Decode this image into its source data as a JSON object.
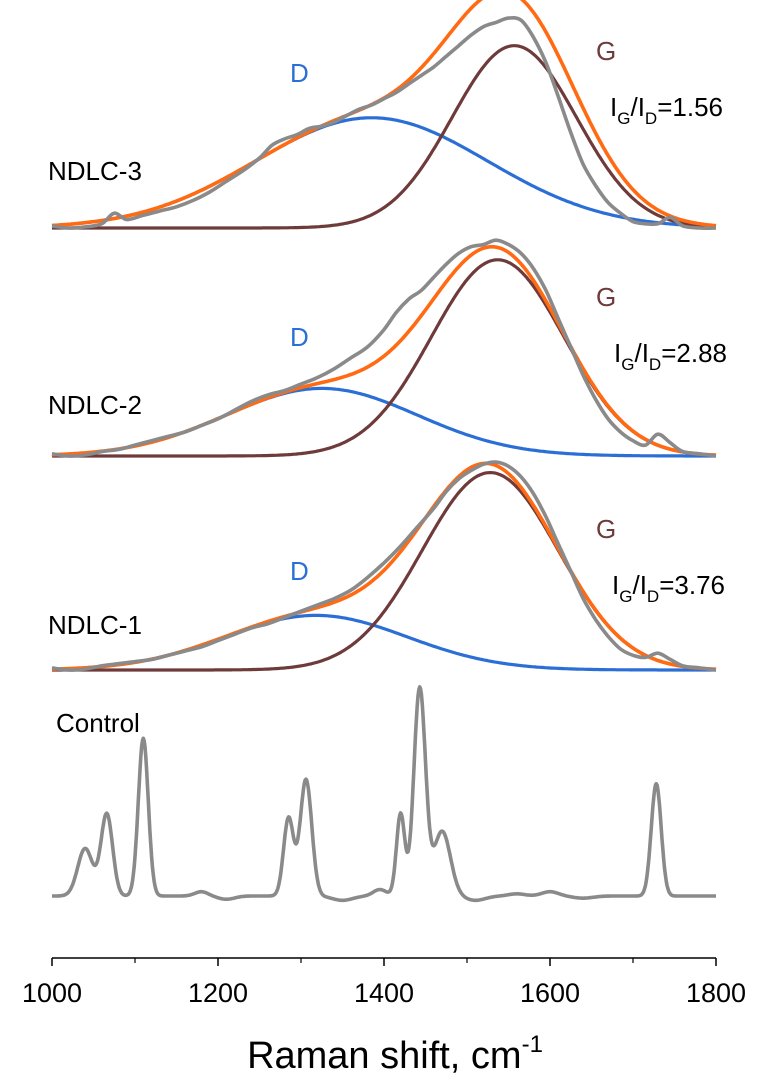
{
  "chart_data": {
    "type": "line",
    "xlabel": "Raman shift, cm",
    "xlabel_sup": "-1",
    "xlim": [
      1000,
      1800
    ],
    "xticks": [
      1000,
      1200,
      1400,
      1600,
      1800
    ],
    "ylabel": "",
    "y_ticks_shown": false,
    "grid": false,
    "colors": {
      "measured": "#8a8a8a",
      "fit": "#ff6a12",
      "d_band": "#2b6fd6",
      "g_band": "#6e3a3a",
      "axis": "#000000"
    },
    "band_labels": {
      "d": "D",
      "g": "G"
    },
    "panels": [
      {
        "name": "NDLC-3",
        "ratio_text": {
          "i1": "I",
          "sub1": "G",
          "slash": "/I",
          "sub2": "D",
          "value": "=1.56"
        },
        "d_band": {
          "center": 1385,
          "amplitude": 0.52,
          "width": 140
        },
        "g_band": {
          "center": 1557,
          "amplitude": 0.86,
          "width": 75
        },
        "measured_points": [
          [
            1000,
            0.01
          ],
          [
            1020,
            0.0
          ],
          [
            1040,
            0.005
          ],
          [
            1060,
            0.02
          ],
          [
            1075,
            0.07
          ],
          [
            1090,
            0.04
          ],
          [
            1110,
            0.06
          ],
          [
            1130,
            0.08
          ],
          [
            1150,
            0.1
          ],
          [
            1170,
            0.13
          ],
          [
            1190,
            0.17
          ],
          [
            1210,
            0.22
          ],
          [
            1230,
            0.27
          ],
          [
            1250,
            0.33
          ],
          [
            1265,
            0.39
          ],
          [
            1280,
            0.42
          ],
          [
            1295,
            0.44
          ],
          [
            1310,
            0.47
          ],
          [
            1325,
            0.48
          ],
          [
            1340,
            0.5
          ],
          [
            1355,
            0.53
          ],
          [
            1370,
            0.56
          ],
          [
            1385,
            0.58
          ],
          [
            1400,
            0.61
          ],
          [
            1415,
            0.64
          ],
          [
            1430,
            0.68
          ],
          [
            1445,
            0.72
          ],
          [
            1460,
            0.76
          ],
          [
            1475,
            0.81
          ],
          [
            1490,
            0.86
          ],
          [
            1505,
            0.91
          ],
          [
            1520,
            0.95
          ],
          [
            1535,
            0.97
          ],
          [
            1550,
            0.99
          ],
          [
            1565,
            0.98
          ],
          [
            1580,
            0.9
          ],
          [
            1595,
            0.78
          ],
          [
            1610,
            0.62
          ],
          [
            1625,
            0.45
          ],
          [
            1640,
            0.3
          ],
          [
            1655,
            0.2
          ],
          [
            1670,
            0.12
          ],
          [
            1685,
            0.07
          ],
          [
            1700,
            0.03
          ],
          [
            1715,
            0.02
          ],
          [
            1730,
            0.02
          ],
          [
            1745,
            0.05
          ],
          [
            1760,
            0.01
          ],
          [
            1780,
            0.0
          ],
          [
            1800,
            0.0
          ]
        ]
      },
      {
        "name": "NDLC-2",
        "ratio_text": {
          "i1": "I",
          "sub1": "G",
          "slash": "/I",
          "sub2": "D",
          "value": "=2.88"
        },
        "d_band": {
          "center": 1325,
          "amplitude": 0.31,
          "width": 115
        },
        "g_band": {
          "center": 1537,
          "amplitude": 0.9,
          "width": 80
        },
        "measured_points": [
          [
            1000,
            0.01
          ],
          [
            1020,
            0.0
          ],
          [
            1040,
            0.005
          ],
          [
            1060,
            0.02
          ],
          [
            1080,
            0.03
          ],
          [
            1100,
            0.05
          ],
          [
            1120,
            0.07
          ],
          [
            1140,
            0.09
          ],
          [
            1160,
            0.11
          ],
          [
            1180,
            0.14
          ],
          [
            1200,
            0.17
          ],
          [
            1220,
            0.21
          ],
          [
            1240,
            0.25
          ],
          [
            1260,
            0.28
          ],
          [
            1280,
            0.3
          ],
          [
            1300,
            0.33
          ],
          [
            1320,
            0.36
          ],
          [
            1340,
            0.4
          ],
          [
            1360,
            0.45
          ],
          [
            1380,
            0.5
          ],
          [
            1400,
            0.58
          ],
          [
            1415,
            0.66
          ],
          [
            1430,
            0.72
          ],
          [
            1445,
            0.76
          ],
          [
            1460,
            0.82
          ],
          [
            1475,
            0.88
          ],
          [
            1490,
            0.93
          ],
          [
            1505,
            0.96
          ],
          [
            1520,
            0.97
          ],
          [
            1535,
            0.99
          ],
          [
            1550,
            0.97
          ],
          [
            1565,
            0.93
          ],
          [
            1580,
            0.86
          ],
          [
            1595,
            0.76
          ],
          [
            1610,
            0.63
          ],
          [
            1625,
            0.5
          ],
          [
            1640,
            0.37
          ],
          [
            1655,
            0.26
          ],
          [
            1670,
            0.17
          ],
          [
            1685,
            0.11
          ],
          [
            1700,
            0.07
          ],
          [
            1715,
            0.05
          ],
          [
            1730,
            0.1
          ],
          [
            1745,
            0.06
          ],
          [
            1760,
            0.02
          ],
          [
            1780,
            0.01
          ],
          [
            1800,
            0.0
          ]
        ]
      },
      {
        "name": "NDLC-1",
        "ratio_text": {
          "i1": "I",
          "sub1": "G",
          "slash": "/I",
          "sub2": "D",
          "value": "=3.76"
        },
        "d_band": {
          "center": 1318,
          "amplitude": 0.26,
          "width": 110
        },
        "g_band": {
          "center": 1528,
          "amplitude": 0.94,
          "width": 82
        },
        "measured_points": [
          [
            1000,
            0.01
          ],
          [
            1020,
            0.0
          ],
          [
            1040,
            0.005
          ],
          [
            1060,
            0.02
          ],
          [
            1080,
            0.03
          ],
          [
            1100,
            0.04
          ],
          [
            1120,
            0.05
          ],
          [
            1140,
            0.07
          ],
          [
            1160,
            0.09
          ],
          [
            1180,
            0.11
          ],
          [
            1200,
            0.14
          ],
          [
            1220,
            0.17
          ],
          [
            1240,
            0.2
          ],
          [
            1260,
            0.22
          ],
          [
            1280,
            0.25
          ],
          [
            1300,
            0.28
          ],
          [
            1320,
            0.31
          ],
          [
            1340,
            0.34
          ],
          [
            1360,
            0.38
          ],
          [
            1380,
            0.44
          ],
          [
            1400,
            0.51
          ],
          [
            1420,
            0.59
          ],
          [
            1440,
            0.68
          ],
          [
            1460,
            0.77
          ],
          [
            1475,
            0.85
          ],
          [
            1490,
            0.91
          ],
          [
            1505,
            0.95
          ],
          [
            1520,
            0.98
          ],
          [
            1535,
            0.99
          ],
          [
            1550,
            0.97
          ],
          [
            1565,
            0.92
          ],
          [
            1580,
            0.84
          ],
          [
            1595,
            0.73
          ],
          [
            1610,
            0.6
          ],
          [
            1625,
            0.47
          ],
          [
            1640,
            0.34
          ],
          [
            1655,
            0.24
          ],
          [
            1670,
            0.16
          ],
          [
            1685,
            0.1
          ],
          [
            1700,
            0.07
          ],
          [
            1715,
            0.06
          ],
          [
            1730,
            0.08
          ],
          [
            1745,
            0.05
          ],
          [
            1760,
            0.02
          ],
          [
            1780,
            0.01
          ],
          [
            1800,
            0.0
          ]
        ]
      },
      {
        "name": "Control",
        "peaks": [
          {
            "center": 1040,
            "amplitude": 0.22,
            "width": 9
          },
          {
            "center": 1066,
            "amplitude": 0.38,
            "width": 7
          },
          {
            "center": 1110,
            "amplitude": 0.73,
            "width": 6
          },
          {
            "center": 1285,
            "amplitude": 0.36,
            "width": 6
          },
          {
            "center": 1306,
            "amplitude": 0.54,
            "width": 7
          },
          {
            "center": 1420,
            "amplitude": 0.38,
            "width": 5
          },
          {
            "center": 1443,
            "amplitude": 0.96,
            "width": 7
          },
          {
            "center": 1470,
            "amplitude": 0.3,
            "width": 10
          },
          {
            "center": 1728,
            "amplitude": 0.52,
            "width": 6
          }
        ],
        "noise": [
          {
            "center": 1180,
            "amplitude": 0.02,
            "width": 8
          },
          {
            "center": 1210,
            "amplitude": -0.015,
            "width": 10
          },
          {
            "center": 1350,
            "amplitude": -0.02,
            "width": 12
          },
          {
            "center": 1395,
            "amplitude": 0.03,
            "width": 8
          },
          {
            "center": 1510,
            "amplitude": -0.02,
            "width": 12
          },
          {
            "center": 1560,
            "amplitude": 0.01,
            "width": 10
          },
          {
            "center": 1600,
            "amplitude": 0.02,
            "width": 10
          },
          {
            "center": 1640,
            "amplitude": -0.01,
            "width": 12
          }
        ]
      }
    ]
  }
}
